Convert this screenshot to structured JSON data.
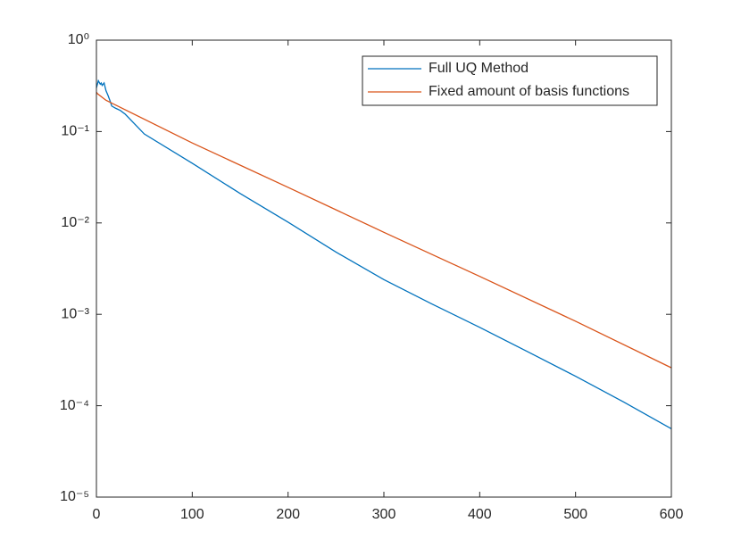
{
  "chart_data": {
    "type": "line",
    "xlim": [
      0,
      600
    ],
    "xticks": [
      0,
      100,
      200,
      300,
      400,
      500,
      600
    ],
    "ylim": [
      1e-05,
      1
    ],
    "log_y": true,
    "yticks": [
      {
        "value": 1,
        "label": "10⁰"
      },
      {
        "value": 0.1,
        "label": "10⁻¹"
      },
      {
        "value": 0.01,
        "label": "10⁻²"
      },
      {
        "value": 0.001,
        "label": "10⁻³"
      },
      {
        "value": 0.0001,
        "label": "10⁻⁴"
      },
      {
        "value": 1e-05,
        "label": "10⁻⁵"
      }
    ],
    "legend": "northeast",
    "series": [
      {
        "name": "Full UQ Method",
        "color": "#0072bd",
        "x": [
          0,
          2,
          4,
          5,
          6,
          8,
          10,
          12,
          14,
          16,
          20,
          25,
          30,
          50,
          100,
          150,
          200,
          250,
          300,
          350,
          400,
          450,
          500,
          550,
          600
        ],
        "values": [
          0.3,
          0.36,
          0.33,
          0.34,
          0.32,
          0.34,
          0.28,
          0.25,
          0.22,
          0.19,
          0.18,
          0.17,
          0.155,
          0.094,
          0.045,
          0.021,
          0.0102,
          0.0048,
          0.0024,
          0.0013,
          0.00072,
          0.00039,
          0.00021,
          0.00011,
          5.6e-05
        ]
      },
      {
        "name": "Fixed amount of basis functions",
        "color": "#d95319",
        "x": [
          0,
          1,
          10,
          100,
          200,
          300,
          400,
          500,
          600
        ],
        "values": [
          0.27,
          0.26,
          0.22,
          0.075,
          0.0245,
          0.0079,
          0.0026,
          0.00084,
          0.00026
        ]
      }
    ]
  }
}
